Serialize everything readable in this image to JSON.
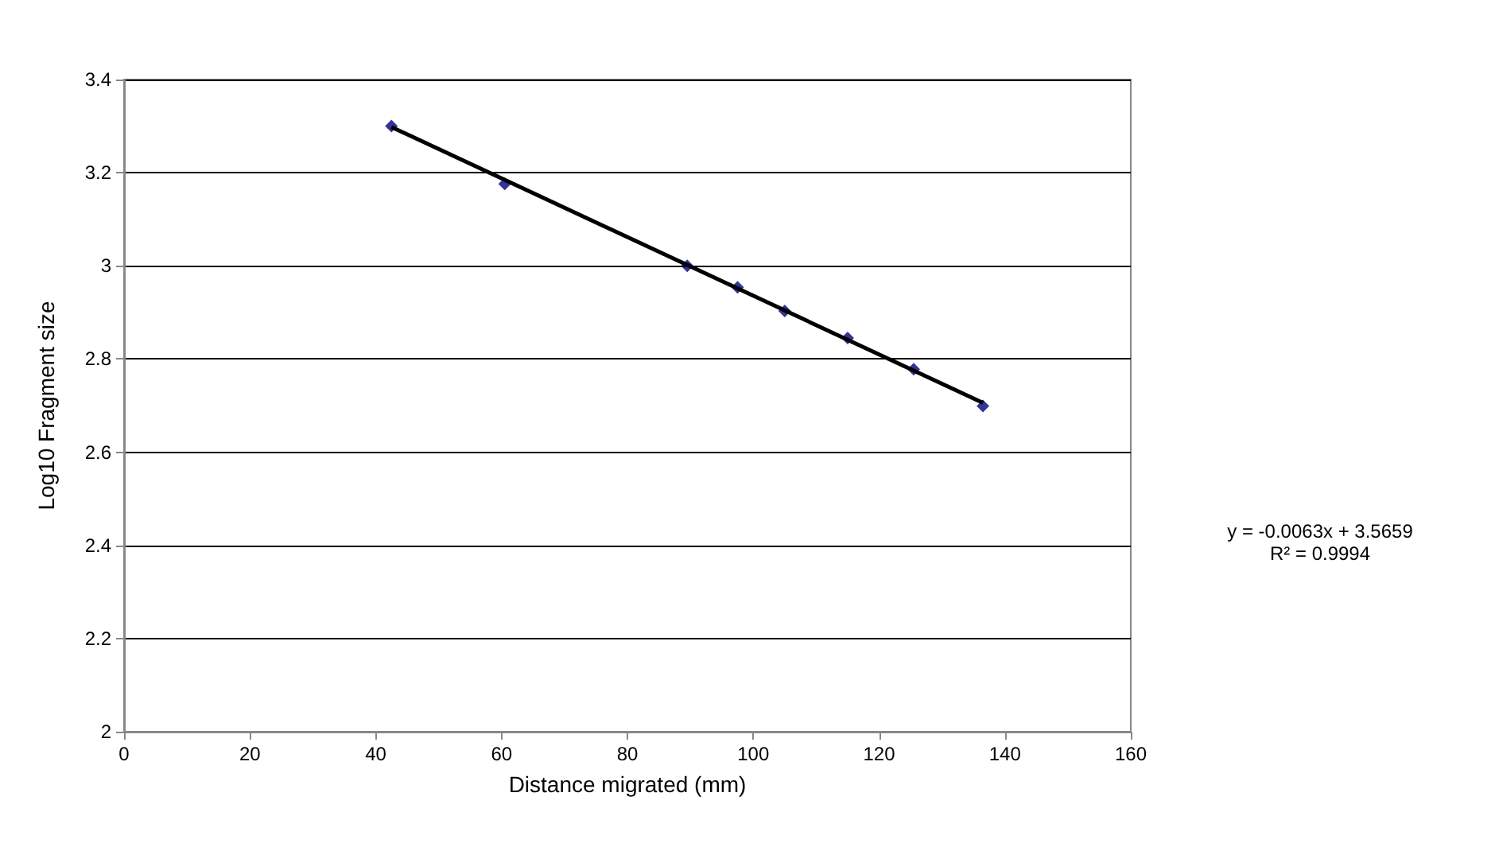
{
  "chart_data": {
    "type": "scatter",
    "xlabel": "Distance migrated (mm)",
    "ylabel": "Log10 Fragment size",
    "series": [
      {
        "color": "#000080",
        "marker": "diamond",
        "x": [
          42.5,
          60.5,
          89.5,
          97.5,
          105,
          115,
          125.5,
          136.5
        ],
        "values": [
          3.3,
          3.176,
          3.0,
          2.954,
          2.903,
          2.845,
          2.778,
          2.699
        ]
      },
      {
        "type": "line",
        "color": "#000000",
        "marker": "none",
        "line_style": "solid",
        "x": [
          42.5,
          136.5
        ],
        "values": [
          3.298,
          2.706
        ]
      }
    ],
    "xlim": [
      0,
      160
    ],
    "xticks": [
      0,
      20,
      40,
      60,
      80,
      100,
      120,
      140,
      160
    ],
    "ylim": [
      2,
      3.4
    ],
    "yticks": [
      2,
      2.2,
      2.4,
      2.6,
      2.8,
      3,
      3.2,
      3.4
    ],
    "grid": "y",
    "annotations": [
      "y = -0.0063x + 3.5659",
      "R² = 0.9994"
    ]
  }
}
